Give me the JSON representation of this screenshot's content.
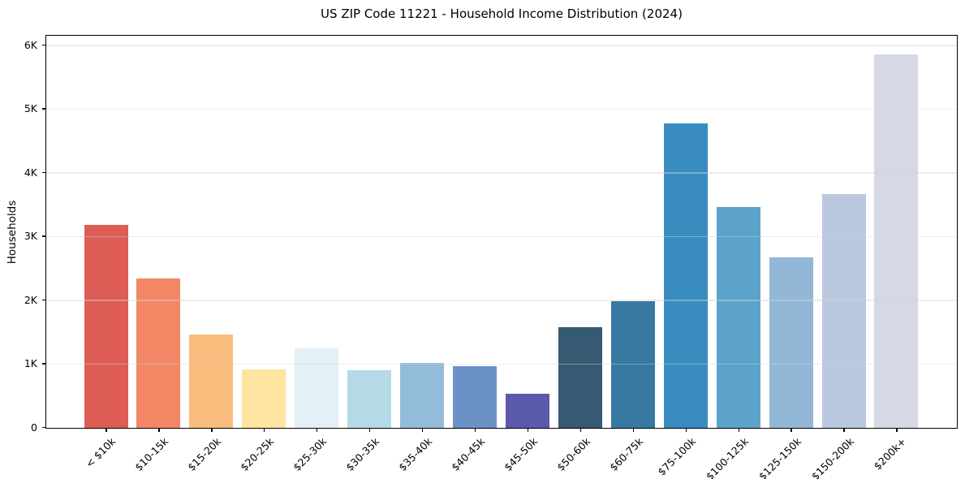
{
  "figure": {
    "title": "US ZIP Code 11221 - Household Income Distribution (2024)",
    "ylabel": "Households"
  },
  "chart_data": {
    "type": "bar",
    "title": "US ZIP Code 11221 - Household Income Distribution (2024)",
    "xlabel": "",
    "ylabel": "Households",
    "categories": [
      "< $10k",
      "$10-15k",
      "$15-20k",
      "$20-25k",
      "$25-30k",
      "$30-35k",
      "$35-40k",
      "$40-45k",
      "$45-50k",
      "$50-60k",
      "$60-75k",
      "$75-100k",
      "$100-125k",
      "$125-150k",
      "$150-200k",
      "$200k+"
    ],
    "values": [
      3190,
      2340,
      1460,
      915,
      1250,
      905,
      1015,
      965,
      530,
      1580,
      1985,
      4775,
      3465,
      2670,
      3665,
      5860
    ],
    "bar_colors": [
      "#dd5c55",
      "#f28766",
      "#f9bc7c",
      "#fde4a0",
      "#e3f0f5",
      "#b4dae7",
      "#92bcda",
      "#6b92c7",
      "#5a59aa",
      "#365a71",
      "#3779a1",
      "#388cc0",
      "#5ba3c9",
      "#93b8d7",
      "#b9c8de",
      "#d7d8e6"
    ],
    "y_tick_labels": [
      "0",
      "1K",
      "2K",
      "3K",
      "4K",
      "5K",
      "6K"
    ],
    "y_tick_values": [
      0,
      1000,
      2000,
      3000,
      4000,
      5000,
      6000
    ],
    "ylim": [
      0,
      6140
    ],
    "grid": "horizontal",
    "legend": "none",
    "frame": true,
    "background": "#ffffff",
    "x_tick_rotation_deg": 45
  }
}
